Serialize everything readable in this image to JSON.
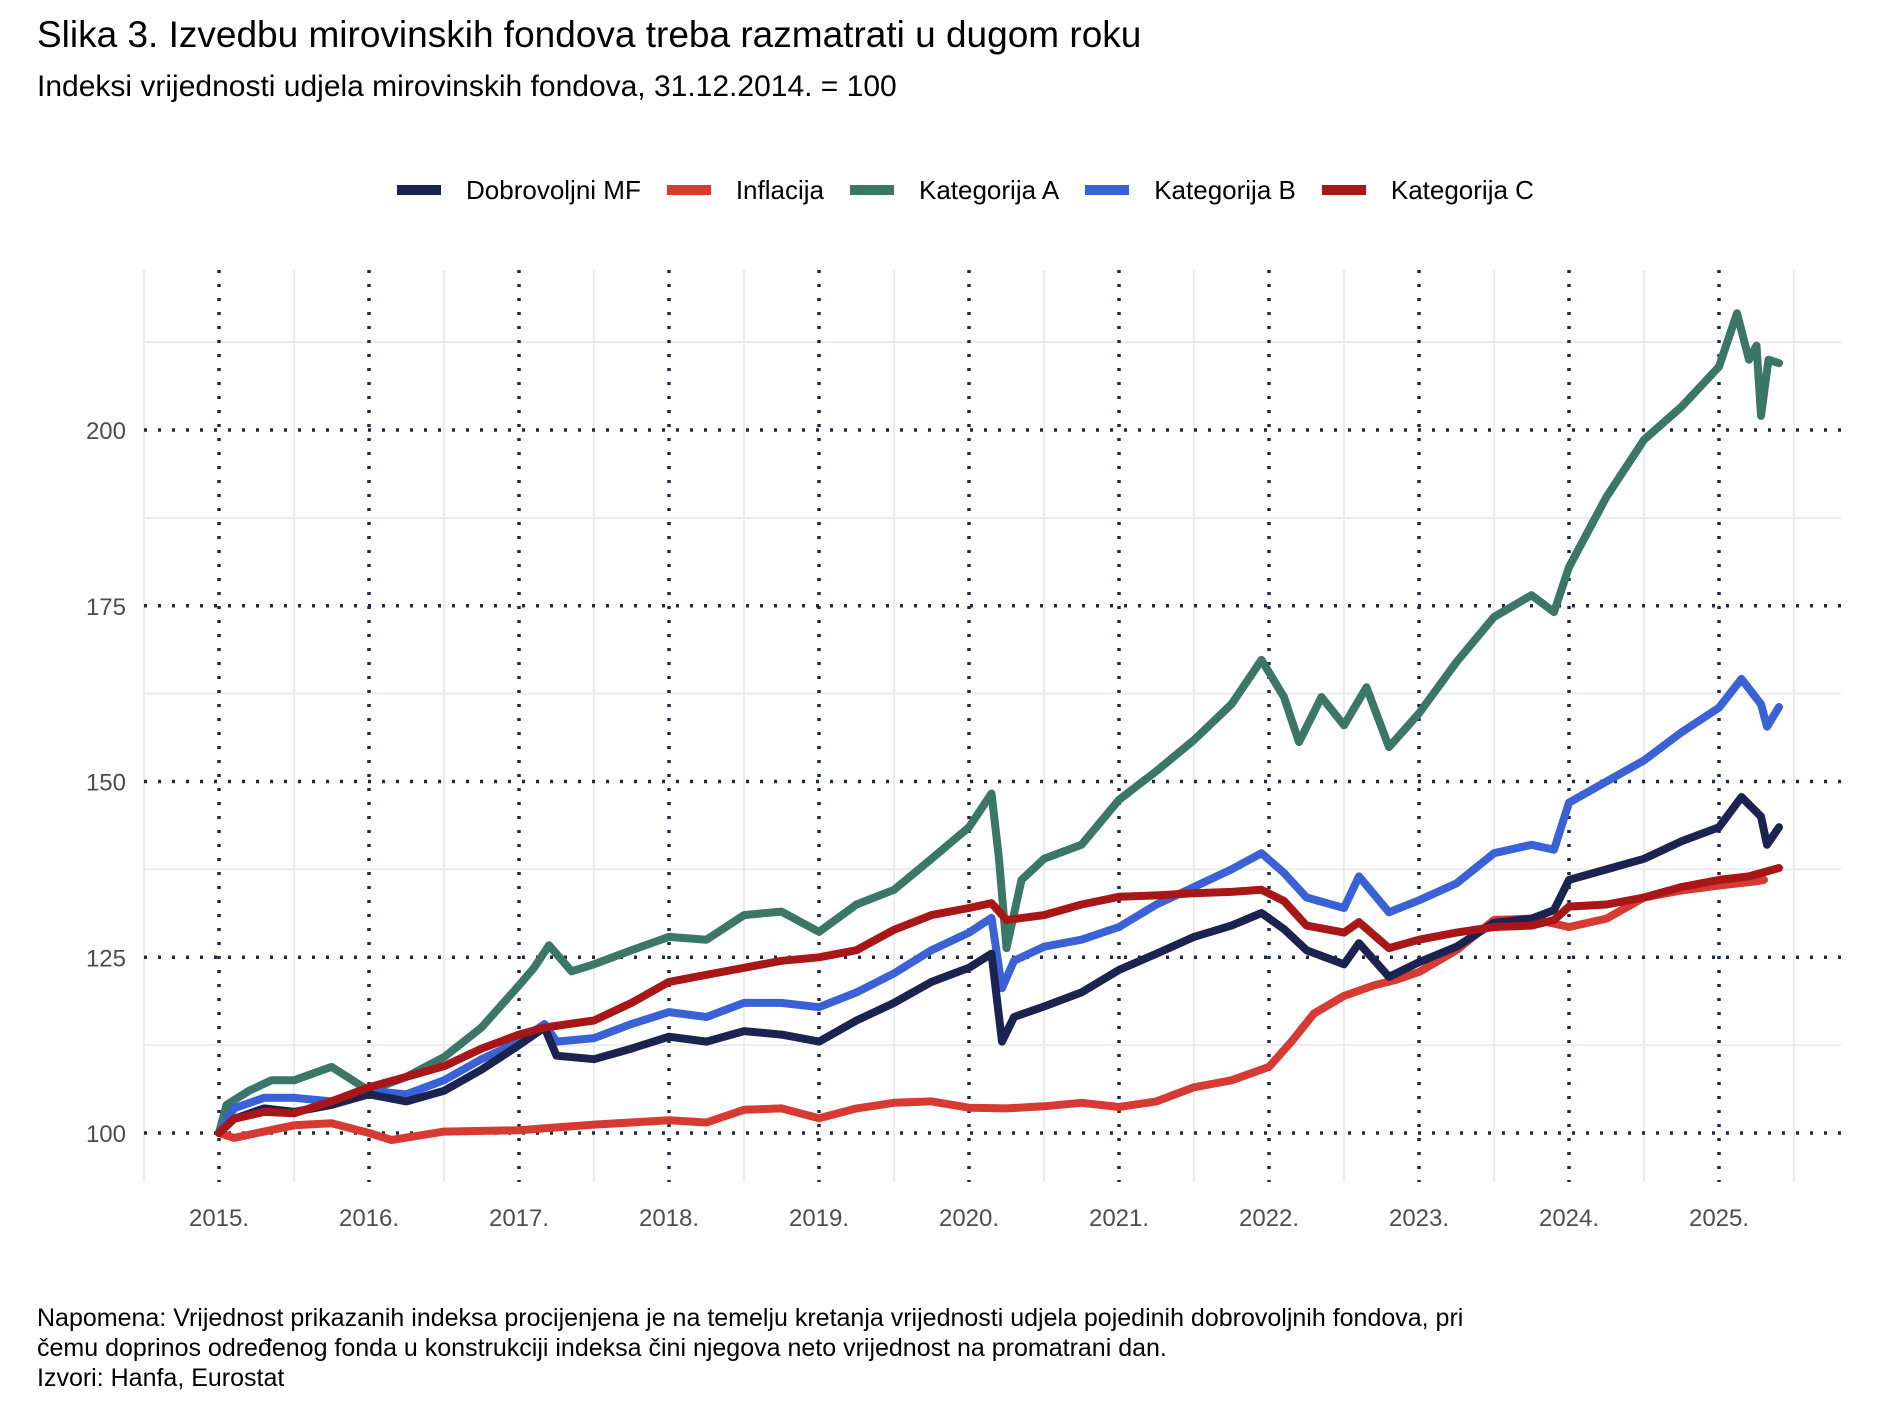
{
  "title": "Slika 3. Izvedbu mirovinskih fondova treba razmatrati u dugom roku",
  "subtitle": "Indeksi vrijednosti udjela mirovinskih fondova, 31.12.2014. = 100",
  "footer": {
    "note_line1": "Napomena: Vrijednost prikazanih indeksa procijenjena je na temelju kretanja vrijednosti udjela pojedinih dobrovoljnih fondova, pri",
    "note_line2": "čemu doprinos određenog fonda u konstrukciji indeksa čini njegova neto vrijednost na promatrani dan.",
    "sources": "Izvori: Hanfa, Eurostat"
  },
  "chart_data": {
    "type": "line",
    "title": "Slika 3. Izvedbu mirovinskih fondova treba razmatrati u dugom roku",
    "subtitle": "Indeksi vrijednosti udjela mirovinskih fondova, 31.12.2014. = 100",
    "xlabel": "",
    "ylabel": "",
    "xlim": [
      2014.7,
      2025.95
    ],
    "ylim": [
      94,
      228
    ],
    "x_ticks": [
      2015,
      2016,
      2017,
      2018,
      2019,
      2020,
      2021,
      2022,
      2023,
      2024,
      2025
    ],
    "x_tick_labels": [
      "2015.",
      "2016.",
      "2017.",
      "2018.",
      "2019.",
      "2020.",
      "2021.",
      "2022.",
      "2023.",
      "2024.",
      "2025."
    ],
    "y_ticks": [
      100,
      125,
      150,
      175,
      200
    ],
    "y_tick_labels": [
      "100",
      "125",
      "150",
      "175",
      "200"
    ],
    "grid": true,
    "legend_position": "top",
    "series": [
      {
        "name": "Dobrovoljni MF",
        "color": "#1b2450",
        "x": [
          2015.0,
          2015.1,
          2015.3,
          2015.5,
          2015.75,
          2016.0,
          2016.25,
          2016.5,
          2016.75,
          2017.0,
          2017.17,
          2017.25,
          2017.5,
          2017.75,
          2018.0,
          2018.25,
          2018.5,
          2018.75,
          2019.0,
          2019.25,
          2019.5,
          2019.75,
          2020.0,
          2020.15,
          2020.22,
          2020.3,
          2020.5,
          2020.75,
          2021.0,
          2021.25,
          2021.5,
          2021.75,
          2021.95,
          2022.1,
          2022.25,
          2022.5,
          2022.6,
          2022.8,
          2023.0,
          2023.25,
          2023.5,
          2023.75,
          2023.9,
          2024.0,
          2024.25,
          2024.5,
          2024.75,
          2025.0,
          2025.15,
          2025.28,
          2025.32,
          2025.4
        ],
        "y": [
          100,
          102,
          103.5,
          103,
          104,
          105.5,
          104.5,
          106,
          109,
          112.5,
          115,
          111,
          110.5,
          112,
          113.7,
          113,
          114.5,
          114,
          113,
          116,
          118.5,
          121.5,
          123.5,
          125.5,
          113,
          116.5,
          118,
          120,
          123.2,
          125.5,
          127.9,
          129.5,
          131.3,
          129,
          126,
          124,
          127,
          122.2,
          124.3,
          126.5,
          129.9,
          130.5,
          131.7,
          136,
          137.5,
          139,
          141.5,
          143.5,
          147.8,
          145,
          141,
          143.5
        ]
      },
      {
        "name": "Inflacija",
        "color": "#d63a33",
        "x": [
          2015.0,
          2015.1,
          2015.3,
          2015.5,
          2015.75,
          2016.0,
          2016.15,
          2016.5,
          2017.0,
          2017.5,
          2018.0,
          2018.25,
          2018.5,
          2018.75,
          2019.0,
          2019.25,
          2019.5,
          2019.75,
          2020.0,
          2020.25,
          2020.5,
          2020.75,
          2021.0,
          2021.25,
          2021.5,
          2021.75,
          2022.0,
          2022.15,
          2022.3,
          2022.5,
          2022.7,
          2022.85,
          2023.0,
          2023.25,
          2023.5,
          2023.75,
          2024.0,
          2024.25,
          2024.5,
          2024.75,
          2025.0,
          2025.25,
          2025.3
        ],
        "y": [
          100,
          99.3,
          100.2,
          101.1,
          101.4,
          100,
          99,
          100.2,
          100.4,
          101.2,
          101.8,
          101.5,
          103.3,
          103.5,
          102.1,
          103.5,
          104.3,
          104.5,
          103.6,
          103.5,
          103.8,
          104.3,
          103.7,
          104.5,
          106.5,
          107.5,
          109.4,
          113,
          117,
          119.5,
          121,
          121.8,
          122.9,
          126,
          130.3,
          130.5,
          129.3,
          130.5,
          133.5,
          134.5,
          135.2,
          135.8,
          136
        ]
      },
      {
        "name": "Kategorija A",
        "color": "#3b7766",
        "x": [
          2015.0,
          2015.05,
          2015.2,
          2015.35,
          2015.5,
          2015.75,
          2016.0,
          2016.25,
          2016.5,
          2016.75,
          2017.0,
          2017.1,
          2017.2,
          2017.35,
          2017.5,
          2017.75,
          2018.0,
          2018.25,
          2018.5,
          2018.75,
          2019.0,
          2019.25,
          2019.5,
          2019.75,
          2020.0,
          2020.15,
          2020.2,
          2020.25,
          2020.35,
          2020.5,
          2020.75,
          2021.0,
          2021.25,
          2021.5,
          2021.75,
          2021.95,
          2022.1,
          2022.2,
          2022.35,
          2022.5,
          2022.65,
          2022.8,
          2023.0,
          2023.25,
          2023.5,
          2023.75,
          2023.9,
          2024.0,
          2024.25,
          2024.5,
          2024.75,
          2025.0,
          2025.12,
          2025.2,
          2025.25,
          2025.28,
          2025.33,
          2025.4
        ],
        "y": [
          100,
          104,
          106,
          107.5,
          107.5,
          109.4,
          106,
          108,
          110.8,
          115,
          121,
          123.5,
          126.7,
          123,
          124,
          126,
          127.9,
          127.5,
          131,
          131.5,
          128.6,
          132.5,
          134.6,
          139,
          143.5,
          148.3,
          139,
          126.3,
          136,
          139,
          141,
          147.4,
          151.5,
          155.9,
          161,
          167.3,
          162,
          155.6,
          162,
          158,
          163.4,
          154.9,
          159.7,
          167,
          173.4,
          176.5,
          174.1,
          180.5,
          190.5,
          198.6,
          203.3,
          209,
          216.6,
          210,
          212,
          202,
          210,
          209.5
        ]
      },
      {
        "name": "Kategorija B",
        "color": "#3a62d6",
        "x": [
          2015.0,
          2015.1,
          2015.3,
          2015.5,
          2015.75,
          2016.0,
          2016.25,
          2016.5,
          2016.75,
          2017.0,
          2017.17,
          2017.25,
          2017.5,
          2017.75,
          2018.0,
          2018.25,
          2018.5,
          2018.75,
          2019.0,
          2019.25,
          2019.5,
          2019.75,
          2020.0,
          2020.15,
          2020.22,
          2020.3,
          2020.5,
          2020.75,
          2021.0,
          2021.25,
          2021.5,
          2021.75,
          2021.95,
          2022.1,
          2022.25,
          2022.5,
          2022.6,
          2022.8,
          2023.0,
          2023.25,
          2023.5,
          2023.75,
          2023.9,
          2024.0,
          2024.25,
          2024.5,
          2024.75,
          2025.0,
          2025.15,
          2025.28,
          2025.32,
          2025.4
        ],
        "y": [
          100,
          103.5,
          105,
          105,
          104.5,
          106,
          105.5,
          107.5,
          110.5,
          113,
          115.5,
          113,
          113.5,
          115.5,
          117.2,
          116.5,
          118.5,
          118.5,
          117.9,
          120,
          122.7,
          126,
          128.5,
          130.6,
          120.6,
          124.5,
          126.5,
          127.5,
          129.3,
          132.5,
          135,
          137.5,
          139.8,
          137,
          133.5,
          132,
          136.5,
          131.4,
          133.1,
          135.5,
          139.8,
          141,
          140.3,
          147,
          150,
          153,
          157,
          160.5,
          164.6,
          161,
          157.8,
          160.6
        ]
      },
      {
        "name": "Kategorija C",
        "color": "#a81617",
        "x": [
          2015.0,
          2015.1,
          2015.3,
          2015.5,
          2015.75,
          2016.0,
          2016.25,
          2016.5,
          2016.75,
          2017.0,
          2017.17,
          2017.5,
          2017.75,
          2018.0,
          2018.25,
          2018.5,
          2018.75,
          2019.0,
          2019.25,
          2019.5,
          2019.75,
          2020.0,
          2020.15,
          2020.25,
          2020.5,
          2020.75,
          2021.0,
          2021.25,
          2021.5,
          2021.75,
          2021.95,
          2022.1,
          2022.25,
          2022.5,
          2022.6,
          2022.8,
          2023.0,
          2023.25,
          2023.5,
          2023.75,
          2023.9,
          2024.0,
          2024.25,
          2024.5,
          2024.75,
          2025.0,
          2025.2,
          2025.4
        ],
        "y": [
          100,
          102,
          103,
          102.8,
          104.5,
          106.5,
          108,
          109.5,
          112,
          114,
          115,
          116,
          118.5,
          121.5,
          122.5,
          123.5,
          124.5,
          125,
          126,
          128.9,
          131,
          132,
          132.7,
          130.3,
          131,
          132.5,
          133.6,
          133.8,
          134.1,
          134.3,
          134.6,
          133,
          129.5,
          128.5,
          130,
          126.3,
          127.5,
          128.5,
          129.3,
          129.5,
          130.3,
          132.2,
          132.5,
          133.5,
          135,
          136,
          136.5,
          137.7
        ]
      }
    ]
  }
}
